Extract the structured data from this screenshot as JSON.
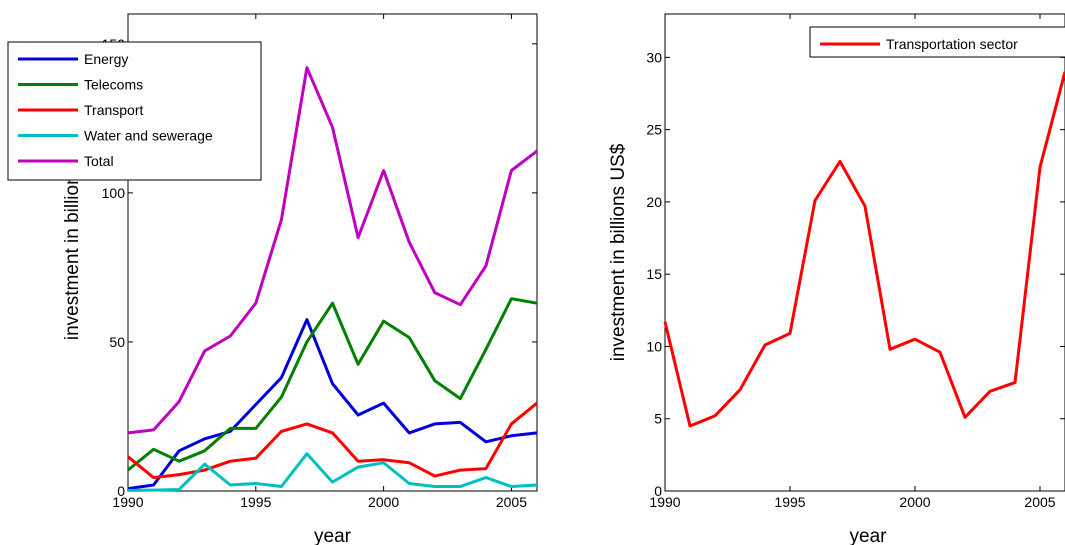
{
  "chart_data": [
    {
      "type": "line",
      "xlabel": "year",
      "ylabel": "investment in billions",
      "xlim": [
        1990,
        2006
      ],
      "ylim": [
        0,
        160
      ],
      "xticks": [
        "1990",
        "1995",
        "2000",
        "2005"
      ],
      "yticks": [
        "0",
        "50",
        "100",
        "150"
      ],
      "legend_position": "top-left",
      "x": [
        1990,
        1991,
        1992,
        1993,
        1994,
        1995,
        1996,
        1997,
        1998,
        1999,
        2000,
        2001,
        2002,
        2003,
        2004,
        2005,
        2006
      ],
      "series": [
        {
          "name": "Energy",
          "color": "#0000dd",
          "values": [
            0.8,
            2.0,
            13.5,
            17.5,
            20.0,
            29.0,
            38.0,
            57.5,
            36.0,
            25.5,
            29.5,
            19.5,
            22.5,
            23.0,
            16.5,
            18.5,
            19.5
          ]
        },
        {
          "name": "Telecoms",
          "color": "#008000",
          "values": [
            7.0,
            14.0,
            10.0,
            13.5,
            21.0,
            21.0,
            31.5,
            50.0,
            63.0,
            42.5,
            57.0,
            51.5,
            37.0,
            31.0,
            47.5,
            64.5,
            63.0
          ]
        },
        {
          "name": "Transport",
          "color": "#ff0000",
          "values": [
            11.5,
            4.5,
            5.5,
            7.0,
            10.0,
            11.0,
            20.0,
            22.5,
            19.5,
            10.0,
            10.5,
            9.5,
            5.0,
            7.0,
            7.5,
            22.5,
            29.5
          ]
        },
        {
          "name": "Water and sewerage",
          "color": "#00bfbf",
          "values": [
            0.2,
            0.3,
            0.5,
            9.0,
            2.0,
            2.5,
            1.5,
            12.5,
            3.0,
            8.0,
            9.5,
            2.5,
            1.5,
            1.5,
            4.5,
            1.5,
            2.0
          ]
        },
        {
          "name": "Total",
          "color": "#bf00bf",
          "values": [
            19.5,
            20.5,
            30.0,
            47.0,
            52.0,
            63.0,
            91.0,
            142.0,
            122.0,
            85.0,
            107.5,
            83.5,
            66.5,
            62.5,
            75.5,
            107.5,
            114.0
          ]
        }
      ]
    },
    {
      "type": "line",
      "xlabel": "year",
      "ylabel": "investment in billions US$",
      "xlim": [
        1990,
        2006
      ],
      "ylim": [
        0,
        33
      ],
      "xticks": [
        "1990",
        "1995",
        "2000",
        "2005"
      ],
      "yticks": [
        "0",
        "5",
        "10",
        "15",
        "20",
        "25",
        "30"
      ],
      "legend_position": "top-right",
      "x": [
        1990,
        1991,
        1992,
        1993,
        1994,
        1995,
        1996,
        1997,
        1998,
        1999,
        2000,
        2001,
        2002,
        2003,
        2004,
        2005,
        2006
      ],
      "series": [
        {
          "name": "Transportation sector",
          "color": "#ff0000",
          "values": [
            11.7,
            4.5,
            5.2,
            7.0,
            10.1,
            10.9,
            20.1,
            22.8,
            19.7,
            9.8,
            10.5,
            9.6,
            5.1,
            6.9,
            7.5,
            22.4,
            29.0
          ]
        }
      ]
    }
  ]
}
